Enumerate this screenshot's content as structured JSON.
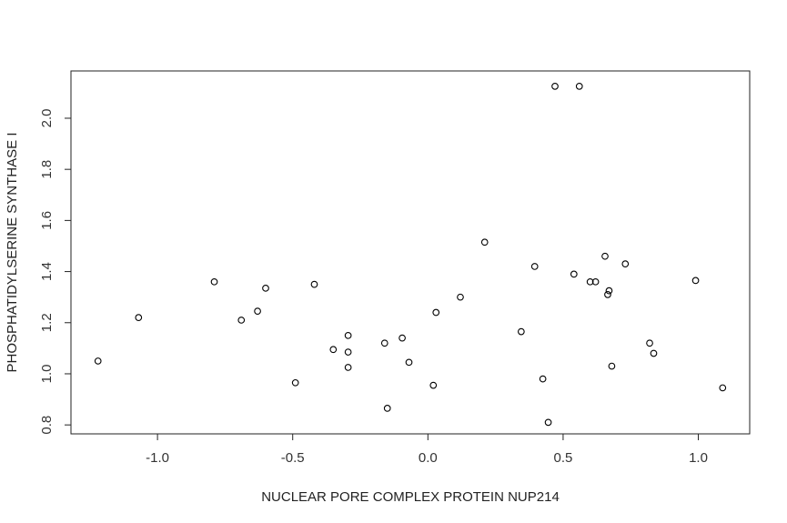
{
  "chart_data": {
    "type": "scatter",
    "title": "",
    "xlabel": "NUCLEAR PORE COMPLEX PROTEIN NUP214",
    "ylabel": "PHOSPHATIDYLSERINE SYNTHASE I",
    "xlim": [
      -1.32,
      1.19
    ],
    "ylim": [
      0.765,
      2.185
    ],
    "x_ticks": [
      -1.0,
      -0.5,
      0.0,
      0.5,
      1.0
    ],
    "x_tick_labels": [
      "-1.0",
      "-0.5",
      "0.0",
      "0.5",
      "1.0"
    ],
    "y_ticks": [
      0.8,
      1.0,
      1.2,
      1.4,
      1.6,
      1.8,
      2.0
    ],
    "y_tick_labels": [
      "0.8",
      "1.0",
      "1.2",
      "1.4",
      "1.6",
      "1.8",
      "2.0"
    ],
    "grid": false,
    "points": [
      {
        "x": -1.22,
        "y": 1.05
      },
      {
        "x": -1.07,
        "y": 1.22
      },
      {
        "x": -0.79,
        "y": 1.36
      },
      {
        "x": -0.69,
        "y": 1.21
      },
      {
        "x": -0.63,
        "y": 1.245
      },
      {
        "x": -0.6,
        "y": 1.335
      },
      {
        "x": -0.49,
        "y": 0.965
      },
      {
        "x": -0.42,
        "y": 1.35
      },
      {
        "x": -0.35,
        "y": 1.095
      },
      {
        "x": -0.295,
        "y": 1.15
      },
      {
        "x": -0.295,
        "y": 1.085
      },
      {
        "x": -0.295,
        "y": 1.025
      },
      {
        "x": -0.16,
        "y": 1.12
      },
      {
        "x": -0.15,
        "y": 0.865
      },
      {
        "x": -0.095,
        "y": 1.14
      },
      {
        "x": -0.07,
        "y": 1.045
      },
      {
        "x": 0.02,
        "y": 0.955
      },
      {
        "x": 0.03,
        "y": 1.24
      },
      {
        "x": 0.12,
        "y": 1.3
      },
      {
        "x": 0.21,
        "y": 1.515
      },
      {
        "x": 0.345,
        "y": 1.165
      },
      {
        "x": 0.395,
        "y": 1.42
      },
      {
        "x": 0.425,
        "y": 0.98
      },
      {
        "x": 0.445,
        "y": 0.81
      },
      {
        "x": 0.47,
        "y": 2.125
      },
      {
        "x": 0.54,
        "y": 1.39
      },
      {
        "x": 0.56,
        "y": 2.125
      },
      {
        "x": 0.6,
        "y": 1.36
      },
      {
        "x": 0.62,
        "y": 1.36
      },
      {
        "x": 0.655,
        "y": 1.46
      },
      {
        "x": 0.665,
        "y": 1.31
      },
      {
        "x": 0.67,
        "y": 1.325
      },
      {
        "x": 0.68,
        "y": 1.03
      },
      {
        "x": 0.73,
        "y": 1.43
      },
      {
        "x": 0.82,
        "y": 1.12
      },
      {
        "x": 0.835,
        "y": 1.08
      },
      {
        "x": 0.99,
        "y": 1.365
      },
      {
        "x": 1.09,
        "y": 0.945
      }
    ]
  }
}
